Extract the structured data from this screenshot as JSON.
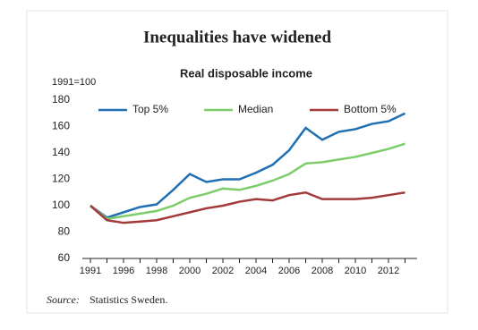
{
  "chart_data": {
    "type": "line",
    "title": "Inequalities have widened",
    "subtitle": "Real disposable income",
    "y_label": "1991=100",
    "source_label": "Source:",
    "source_text": "Statistics Sweden.",
    "categories": [
      "1991",
      null,
      "1996",
      null,
      "1998",
      null,
      "2000",
      null,
      "2002",
      null,
      "2004",
      null,
      "2006",
      null,
      "2008",
      null,
      "2010",
      null,
      "2012",
      null
    ],
    "series": [
      {
        "name": "Top 5%",
        "color": "#1f6fb2",
        "values": [
          100,
          91,
          95,
          99,
          101,
          112,
          124,
          118,
          120,
          120,
          125,
          131,
          142,
          159,
          150,
          156,
          158,
          162,
          164,
          170
        ]
      },
      {
        "name": "Median",
        "color": "#7ccd6a",
        "values": [
          100,
          90,
          92,
          94,
          96,
          100,
          106,
          109,
          113,
          112,
          115,
          119,
          124,
          132,
          133,
          135,
          137,
          140,
          143,
          147
        ]
      },
      {
        "name": "Bottom 5%",
        "color": "#a33a3a",
        "values": [
          100,
          89,
          87,
          88,
          89,
          92,
          95,
          98,
          100,
          103,
          105,
          104,
          108,
          110,
          105,
          105,
          105,
          106,
          108,
          110
        ]
      }
    ],
    "ylim": [
      60,
      180
    ],
    "yticks": [
      60,
      80,
      100,
      120,
      140,
      160,
      180
    ],
    "grid": false,
    "legend": "top"
  }
}
